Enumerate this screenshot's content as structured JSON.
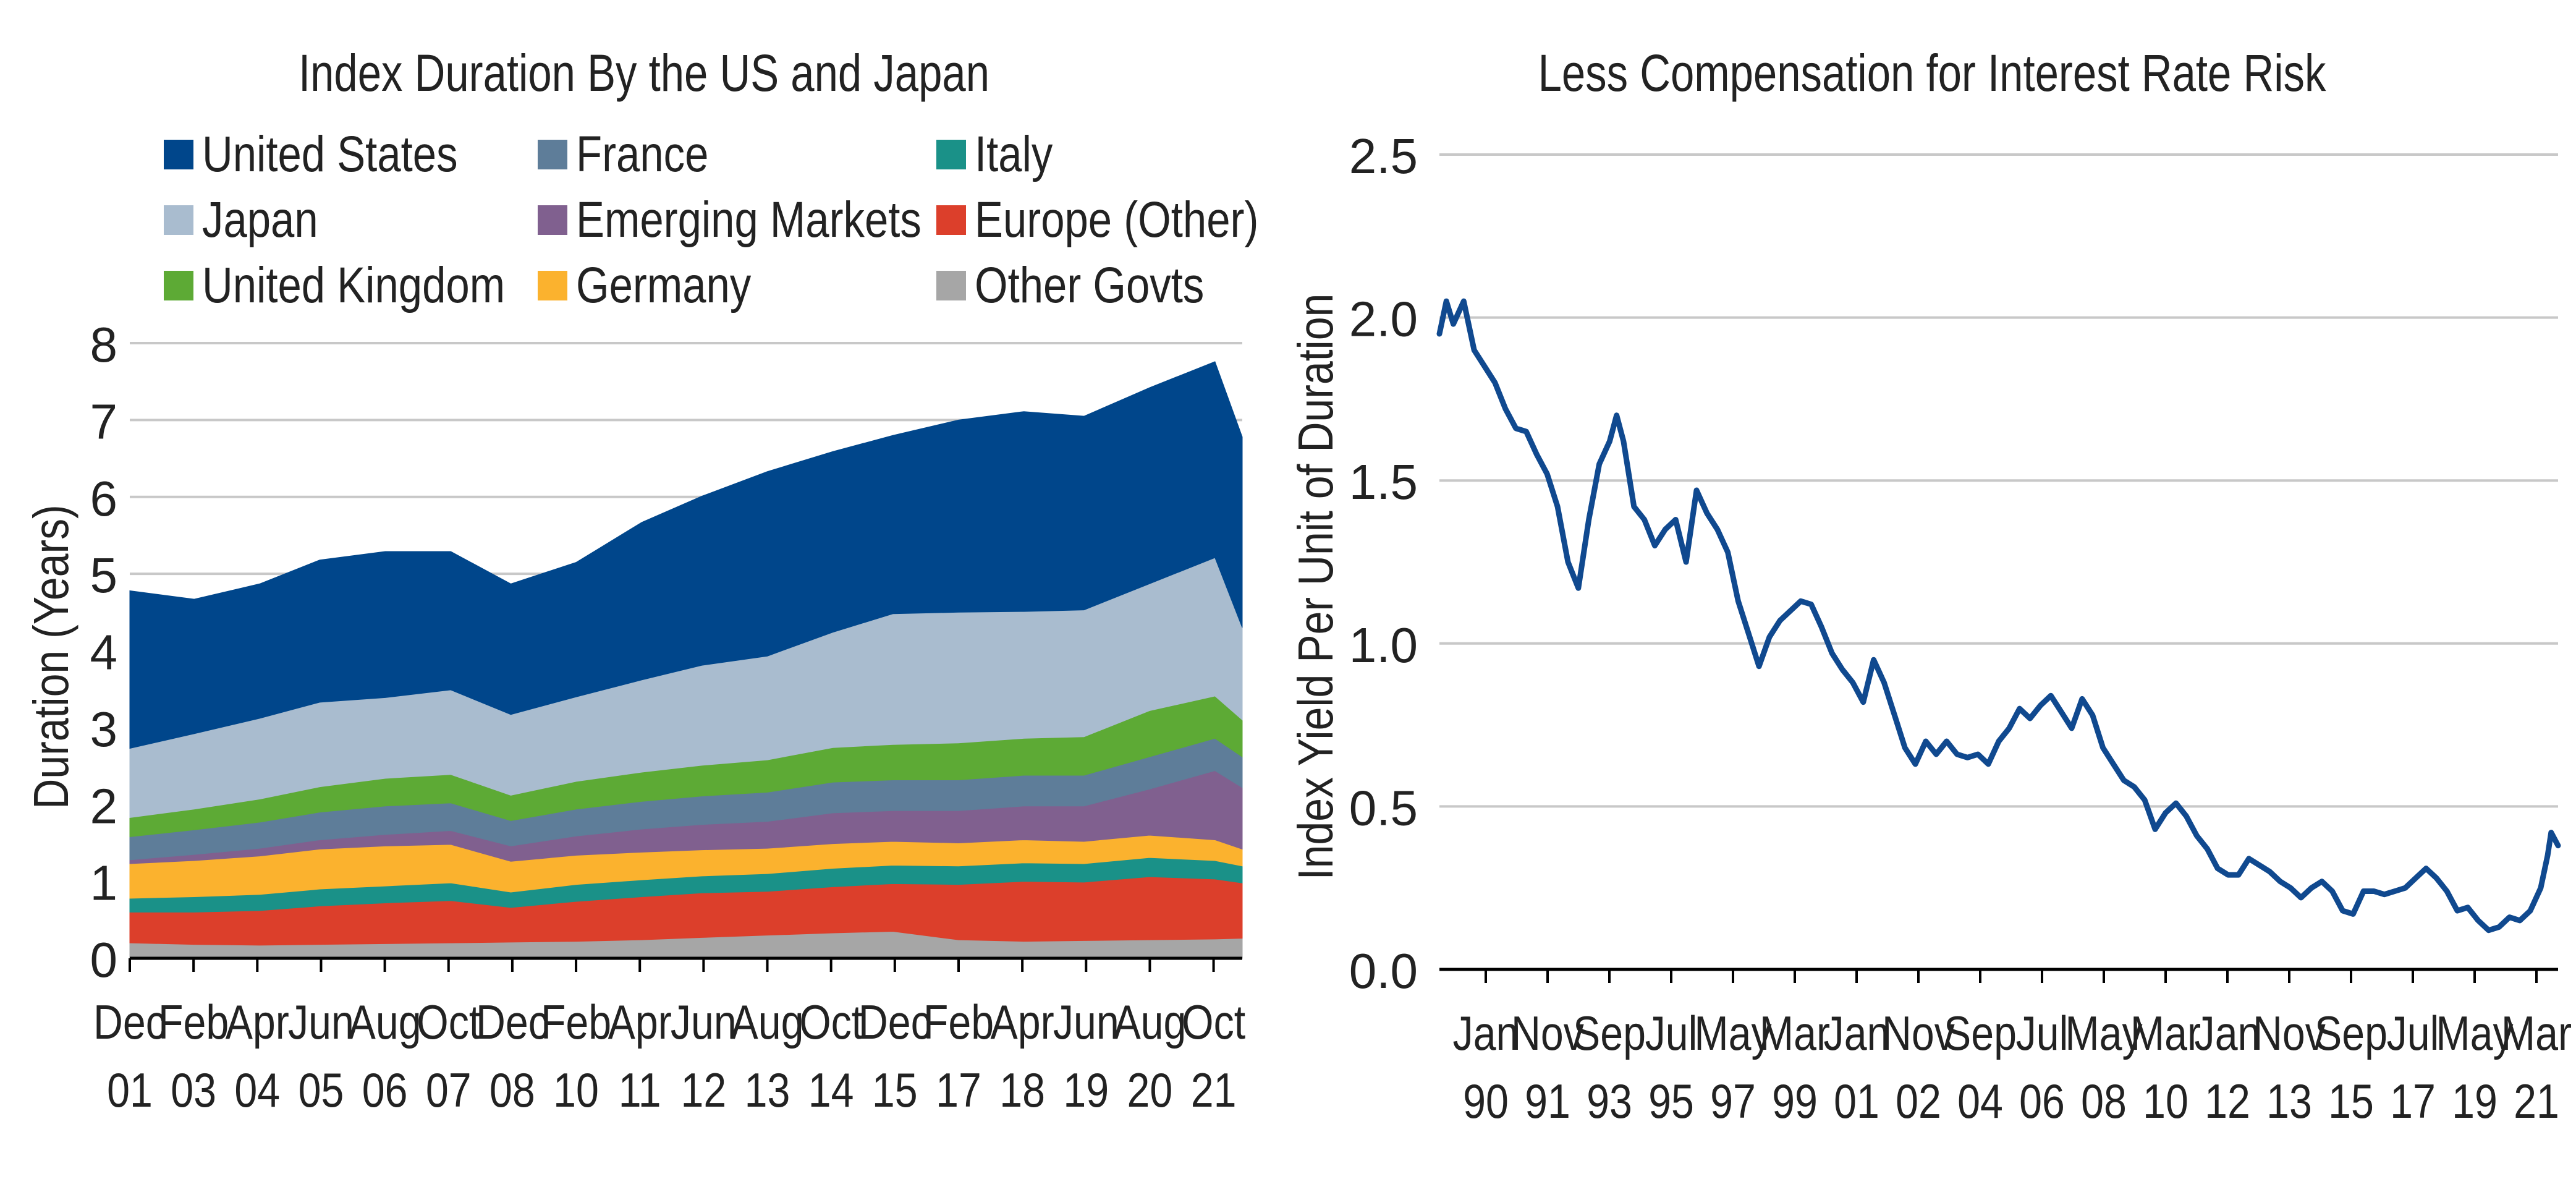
{
  "chart_data": [
    {
      "type": "area",
      "stacked": true,
      "title": "Index Duration By the US and Japan",
      "xlabel": "",
      "ylabel": "Duration (Years)",
      "ylim": [
        0,
        8
      ],
      "yticks": [
        "0",
        "1",
        "2",
        "3",
        "4",
        "5",
        "6",
        "7",
        "8"
      ],
      "xtick_labels": [
        {
          "month": "Dec",
          "year": "01"
        },
        {
          "month": "Feb",
          "year": "03"
        },
        {
          "month": "Apr",
          "year": "04"
        },
        {
          "month": "Jun",
          "year": "05"
        },
        {
          "month": "Aug",
          "year": "06"
        },
        {
          "month": "Oct",
          "year": "07"
        },
        {
          "month": "Dec",
          "year": "08"
        },
        {
          "month": "Feb",
          "year": "10"
        },
        {
          "month": "Apr",
          "year": "11"
        },
        {
          "month": "Jun",
          "year": "12"
        },
        {
          "month": "Aug",
          "year": "13"
        },
        {
          "month": "Oct",
          "year": "14"
        },
        {
          "month": "Dec",
          "year": "15"
        },
        {
          "month": "Feb",
          "year": "17"
        },
        {
          "month": "Apr",
          "year": "18"
        },
        {
          "month": "Jun",
          "year": "19"
        },
        {
          "month": "Aug",
          "year": "20"
        },
        {
          "month": "Oct",
          "year": "21"
        }
      ],
      "x": [
        2001.92,
        2003.1,
        2004.3,
        2005.4,
        2006.6,
        2007.8,
        2008.9,
        2010.1,
        2011.3,
        2012.4,
        2013.6,
        2014.8,
        2015.9,
        2017.1,
        2018.3,
        2019.4,
        2020.6,
        2021.8,
        2022.3
      ],
      "x_range": [
        2001.92,
        2022.3
      ],
      "series": [
        {
          "name": "Other Govts",
          "color": "#A6A6A6",
          "values": [
            0.2,
            0.18,
            0.17,
            0.18,
            0.19,
            0.2,
            0.21,
            0.22,
            0.24,
            0.27,
            0.3,
            0.33,
            0.35,
            0.24,
            0.22,
            0.23,
            0.24,
            0.25,
            0.26
          ]
        },
        {
          "name": "Europe (Other)",
          "color": "#DC3F2B",
          "values": [
            0.4,
            0.42,
            0.45,
            0.5,
            0.53,
            0.55,
            0.45,
            0.52,
            0.56,
            0.58,
            0.57,
            0.6,
            0.62,
            0.72,
            0.78,
            0.76,
            0.82,
            0.78,
            0.72
          ]
        },
        {
          "name": "Italy",
          "color": "#1A9188",
          "values": [
            0.18,
            0.2,
            0.21,
            0.22,
            0.22,
            0.23,
            0.2,
            0.22,
            0.22,
            0.22,
            0.23,
            0.24,
            0.24,
            0.24,
            0.24,
            0.24,
            0.25,
            0.24,
            0.22
          ]
        },
        {
          "name": "Germany",
          "color": "#FBB22E",
          "values": [
            0.45,
            0.47,
            0.5,
            0.52,
            0.52,
            0.5,
            0.4,
            0.38,
            0.36,
            0.34,
            0.33,
            0.32,
            0.31,
            0.3,
            0.3,
            0.29,
            0.29,
            0.27,
            0.22
          ]
        },
        {
          "name": "Emerging Markets",
          "color": "#80608F",
          "values": [
            0.05,
            0.08,
            0.1,
            0.12,
            0.15,
            0.18,
            0.2,
            0.25,
            0.3,
            0.33,
            0.35,
            0.4,
            0.4,
            0.42,
            0.44,
            0.46,
            0.6,
            0.9,
            0.8
          ]
        },
        {
          "name": "France",
          "color": "#5E7D99",
          "values": [
            0.3,
            0.32,
            0.34,
            0.36,
            0.37,
            0.36,
            0.33,
            0.35,
            0.36,
            0.37,
            0.38,
            0.4,
            0.4,
            0.4,
            0.4,
            0.4,
            0.42,
            0.42,
            0.4
          ]
        },
        {
          "name": "United Kingdom",
          "color": "#5DAA35",
          "values": [
            0.25,
            0.27,
            0.3,
            0.33,
            0.36,
            0.37,
            0.33,
            0.36,
            0.38,
            0.4,
            0.42,
            0.45,
            0.46,
            0.48,
            0.48,
            0.5,
            0.6,
            0.55,
            0.48
          ]
        },
        {
          "name": "Japan",
          "color": "#A9BCCF",
          "values": [
            0.9,
            0.98,
            1.05,
            1.1,
            1.05,
            1.1,
            1.05,
            1.1,
            1.2,
            1.3,
            1.35,
            1.5,
            1.7,
            1.7,
            1.65,
            1.65,
            1.65,
            1.8,
            1.2
          ]
        },
        {
          "name": "United States",
          "color": "#00468B",
          "values": [
            2.05,
            1.75,
            1.75,
            1.85,
            1.9,
            1.8,
            1.7,
            1.75,
            2.05,
            2.2,
            2.4,
            2.35,
            2.32,
            2.5,
            2.6,
            2.52,
            2.55,
            2.55,
            2.48
          ]
        }
      ],
      "legend_order": [
        "United States",
        "France",
        "Italy",
        "Japan",
        "Emerging Markets",
        "Europe (Other)",
        "United Kingdom",
        "Germany",
        "Other Govts"
      ],
      "grid": true,
      "legend": "top"
    },
    {
      "type": "line",
      "title": "Less Compensation for Interest Rate Risk",
      "xlabel": "",
      "ylabel": "Index Yield Per Unit of Duration",
      "ylim": [
        0,
        2.5
      ],
      "yticks": [
        "0.0",
        "0.5",
        "1.0",
        "1.5",
        "2.0",
        "2.5"
      ],
      "xtick_labels": [
        {
          "month": "Jan",
          "year": "90"
        },
        {
          "month": "Nov",
          "year": "91"
        },
        {
          "month": "Sep",
          "year": "93"
        },
        {
          "month": "Jul",
          "year": "95"
        },
        {
          "month": "May",
          "year": "97"
        },
        {
          "month": "Mar",
          "year": "99"
        },
        {
          "month": "Jan",
          "year": "01"
        },
        {
          "month": "Nov",
          "year": "02"
        },
        {
          "month": "Sep",
          "year": "04"
        },
        {
          "month": "Jul",
          "year": "06"
        },
        {
          "month": "May",
          "year": "08"
        },
        {
          "month": "Mar",
          "year": "10"
        },
        {
          "month": "Jan",
          "year": "12"
        },
        {
          "month": "Nov",
          "year": "13"
        },
        {
          "month": "Sep",
          "year": "15"
        },
        {
          "month": "Jul",
          "year": "17"
        },
        {
          "month": "May",
          "year": "19"
        },
        {
          "month": "Mar",
          "year": "21"
        }
      ],
      "x_range": [
        1990.0,
        2022.2
      ],
      "series": [
        {
          "name": "Index Yield Per Unit of Duration",
          "color": "#10498F",
          "points": [
            [
              1990.0,
              1.95
            ],
            [
              1990.2,
              2.05
            ],
            [
              1990.4,
              1.98
            ],
            [
              1990.7,
              2.05
            ],
            [
              1991.0,
              1.9
            ],
            [
              1991.3,
              1.85
            ],
            [
              1991.6,
              1.8
            ],
            [
              1991.9,
              1.72
            ],
            [
              1992.2,
              1.66
            ],
            [
              1992.5,
              1.65
            ],
            [
              1992.8,
              1.58
            ],
            [
              1993.1,
              1.52
            ],
            [
              1993.4,
              1.42
            ],
            [
              1993.7,
              1.25
            ],
            [
              1994.0,
              1.17
            ],
            [
              1994.3,
              1.38
            ],
            [
              1994.6,
              1.55
            ],
            [
              1994.9,
              1.62
            ],
            [
              1995.1,
              1.7
            ],
            [
              1995.3,
              1.62
            ],
            [
              1995.6,
              1.42
            ],
            [
              1995.9,
              1.38
            ],
            [
              1996.2,
              1.3
            ],
            [
              1996.5,
              1.35
            ],
            [
              1996.8,
              1.38
            ],
            [
              1997.1,
              1.25
            ],
            [
              1997.4,
              1.47
            ],
            [
              1997.7,
              1.4
            ],
            [
              1998.0,
              1.35
            ],
            [
              1998.3,
              1.28
            ],
            [
              1998.6,
              1.13
            ],
            [
              1998.9,
              1.03
            ],
            [
              1999.2,
              0.93
            ],
            [
              1999.5,
              1.02
            ],
            [
              1999.8,
              1.07
            ],
            [
              2000.1,
              1.1
            ],
            [
              2000.4,
              1.13
            ],
            [
              2000.7,
              1.12
            ],
            [
              2001.0,
              1.05
            ],
            [
              2001.3,
              0.97
            ],
            [
              2001.6,
              0.92
            ],
            [
              2001.9,
              0.88
            ],
            [
              2002.2,
              0.82
            ],
            [
              2002.5,
              0.95
            ],
            [
              2002.8,
              0.88
            ],
            [
              2003.1,
              0.78
            ],
            [
              2003.4,
              0.68
            ],
            [
              2003.7,
              0.63
            ],
            [
              2004.0,
              0.7
            ],
            [
              2004.3,
              0.66
            ],
            [
              2004.6,
              0.7
            ],
            [
              2004.9,
              0.66
            ],
            [
              2005.2,
              0.65
            ],
            [
              2005.5,
              0.66
            ],
            [
              2005.8,
              0.63
            ],
            [
              2006.1,
              0.7
            ],
            [
              2006.4,
              0.74
            ],
            [
              2006.7,
              0.8
            ],
            [
              2007.0,
              0.77
            ],
            [
              2007.3,
              0.81
            ],
            [
              2007.6,
              0.84
            ],
            [
              2007.9,
              0.79
            ],
            [
              2008.2,
              0.74
            ],
            [
              2008.5,
              0.83
            ],
            [
              2008.8,
              0.78
            ],
            [
              2009.1,
              0.68
            ],
            [
              2009.4,
              0.63
            ],
            [
              2009.7,
              0.58
            ],
            [
              2010.0,
              0.56
            ],
            [
              2010.3,
              0.52
            ],
            [
              2010.6,
              0.43
            ],
            [
              2010.9,
              0.48
            ],
            [
              2011.2,
              0.51
            ],
            [
              2011.5,
              0.47
            ],
            [
              2011.8,
              0.41
            ],
            [
              2012.1,
              0.37
            ],
            [
              2012.4,
              0.31
            ],
            [
              2012.7,
              0.29
            ],
            [
              2013.0,
              0.29
            ],
            [
              2013.3,
              0.34
            ],
            [
              2013.6,
              0.32
            ],
            [
              2013.9,
              0.3
            ],
            [
              2014.2,
              0.27
            ],
            [
              2014.5,
              0.25
            ],
            [
              2014.8,
              0.22
            ],
            [
              2015.1,
              0.25
            ],
            [
              2015.4,
              0.27
            ],
            [
              2015.7,
              0.24
            ],
            [
              2016.0,
              0.18
            ],
            [
              2016.3,
              0.17
            ],
            [
              2016.6,
              0.24
            ],
            [
              2016.9,
              0.24
            ],
            [
              2017.2,
              0.23
            ],
            [
              2017.5,
              0.24
            ],
            [
              2017.8,
              0.25
            ],
            [
              2018.1,
              0.28
            ],
            [
              2018.4,
              0.31
            ],
            [
              2018.7,
              0.28
            ],
            [
              2019.0,
              0.24
            ],
            [
              2019.3,
              0.18
            ],
            [
              2019.6,
              0.19
            ],
            [
              2019.9,
              0.15
            ],
            [
              2020.2,
              0.12
            ],
            [
              2020.5,
              0.13
            ],
            [
              2020.8,
              0.16
            ],
            [
              2021.1,
              0.15
            ],
            [
              2021.4,
              0.18
            ],
            [
              2021.7,
              0.25
            ],
            [
              2021.9,
              0.35
            ],
            [
              2022.0,
              0.42
            ],
            [
              2022.2,
              0.38
            ]
          ]
        }
      ],
      "grid": true,
      "legend": "none"
    }
  ]
}
